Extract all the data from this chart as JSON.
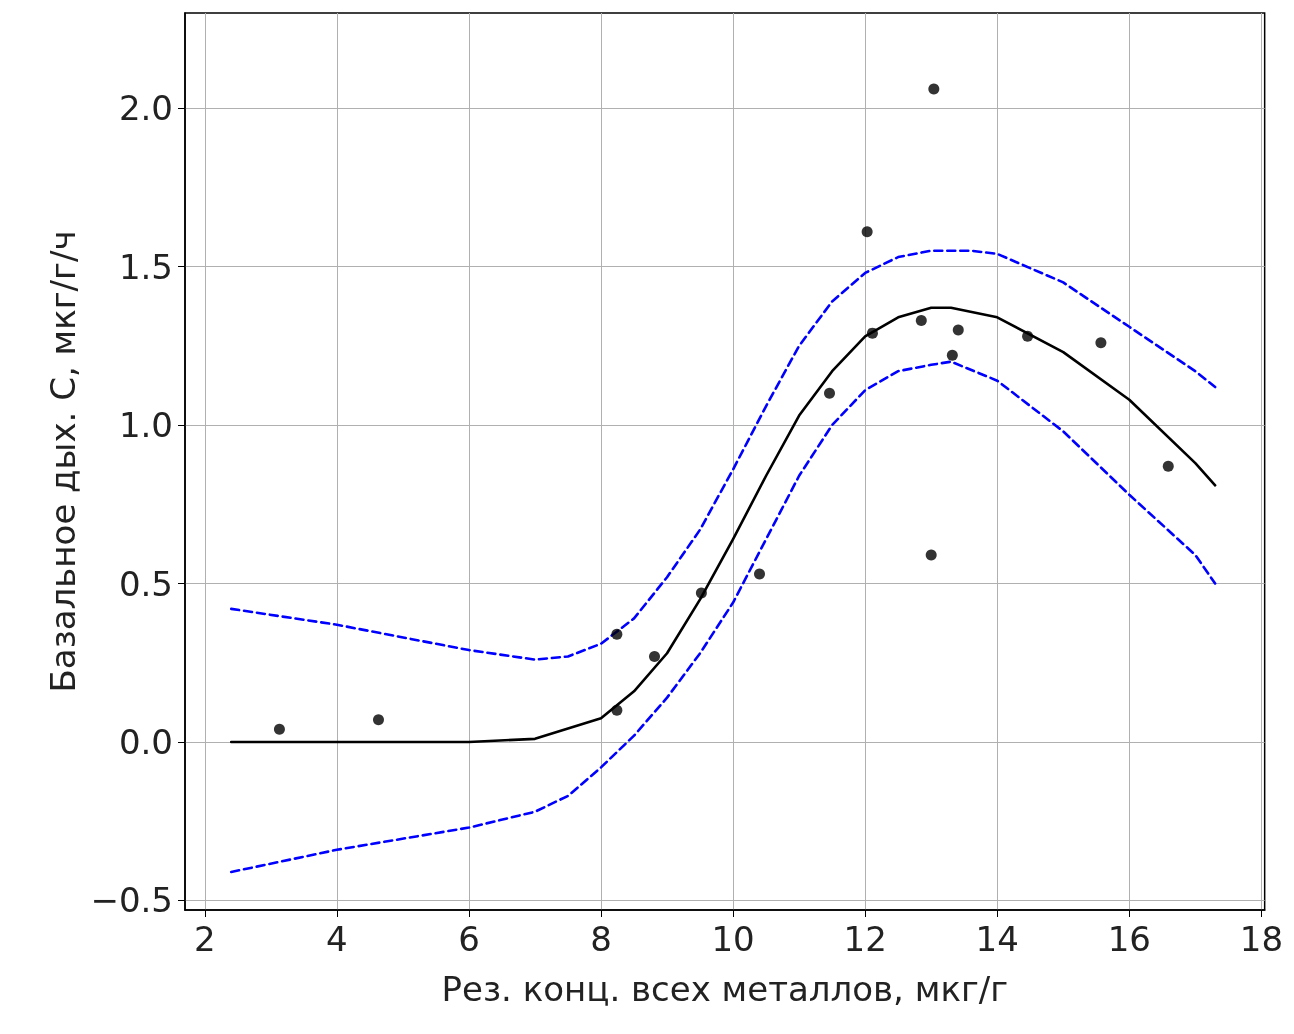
{
  "chart_data": {
    "type": "scatter",
    "xlabel": "Рез. конц. всех металлов, мкг/г",
    "ylabel": "Базальное дых. С, мкг/г/ч",
    "xlim": [
      1.7,
      18.05
    ],
    "ylim": [
      -0.53,
      2.3
    ],
    "xticks": [
      2,
      4,
      6,
      8,
      10,
      12,
      14,
      16,
      18
    ],
    "yticks": [
      {
        "value": -0.5,
        "label": "−0.5"
      },
      {
        "value": 0,
        "label": "0.0"
      },
      {
        "value": 0.5,
        "label": "0.5"
      },
      {
        "value": 1,
        "label": "1.0"
      },
      {
        "value": 1.5,
        "label": "1.5"
      },
      {
        "value": 2,
        "label": "2.0"
      }
    ],
    "grid": true,
    "marker": "circle",
    "series": [
      {
        "color": "#000000",
        "x": [
          3.13,
          4.63,
          8.24,
          8.24,
          8.81,
          9.52,
          10.4,
          11.46,
          12.03,
          12.11,
          12.85,
          13.04,
          13.0,
          13.32,
          13.41,
          14.46,
          15.57,
          16.59
        ],
        "values": [
          0.04,
          0.07,
          0.1,
          0.34,
          0.27,
          0.47,
          0.53,
          1.1,
          1.61,
          1.29,
          1.33,
          2.06,
          0.59,
          1.22,
          1.3,
          1.28,
          1.26,
          0.87
        ]
      },
      {
        "type": "line",
        "color": "#000000",
        "line_style": "solid",
        "marker": "none",
        "x": [
          2.4,
          6,
          7,
          8,
          8.5,
          9,
          9.5,
          10,
          10.5,
          11,
          11.5,
          12,
          12.5,
          13,
          13.3,
          14,
          15,
          16,
          17,
          17.3
        ],
        "values": [
          0.0,
          0.0,
          0.01,
          0.075,
          0.16,
          0.28,
          0.45,
          0.64,
          0.84,
          1.03,
          1.17,
          1.28,
          1.34,
          1.37,
          1.37,
          1.34,
          1.23,
          1.08,
          0.88,
          0.81
        ]
      },
      {
        "type": "line",
        "color": "#0000ff",
        "line_style": "dashed",
        "marker": "none",
        "x": [
          2.4,
          4,
          6,
          7,
          7.5,
          8,
          8.5,
          9,
          9.5,
          10,
          10.5,
          11,
          11.5,
          12,
          12.5,
          13,
          13.6,
          14,
          15,
          16,
          17,
          17.3
        ],
        "values": [
          0.42,
          0.37,
          0.29,
          0.26,
          0.27,
          0.31,
          0.39,
          0.52,
          0.67,
          0.86,
          1.06,
          1.25,
          1.39,
          1.48,
          1.53,
          1.55,
          1.55,
          1.54,
          1.45,
          1.31,
          1.17,
          1.12
        ]
      },
      {
        "type": "line",
        "color": "#0000ff",
        "line_style": "dashed",
        "marker": "none",
        "x": [
          2.4,
          4,
          6,
          7,
          7.5,
          8,
          8.5,
          9,
          9.5,
          10,
          10.5,
          11,
          11.5,
          12,
          12.5,
          13,
          13.3,
          14,
          15,
          16,
          17,
          17.3
        ],
        "values": [
          -0.41,
          -0.34,
          -0.27,
          -0.22,
          -0.17,
          -0.08,
          0.02,
          0.14,
          0.28,
          0.44,
          0.64,
          0.84,
          1.0,
          1.11,
          1.17,
          1.19,
          1.2,
          1.14,
          0.98,
          0.78,
          0.59,
          0.5
        ]
      }
    ]
  }
}
